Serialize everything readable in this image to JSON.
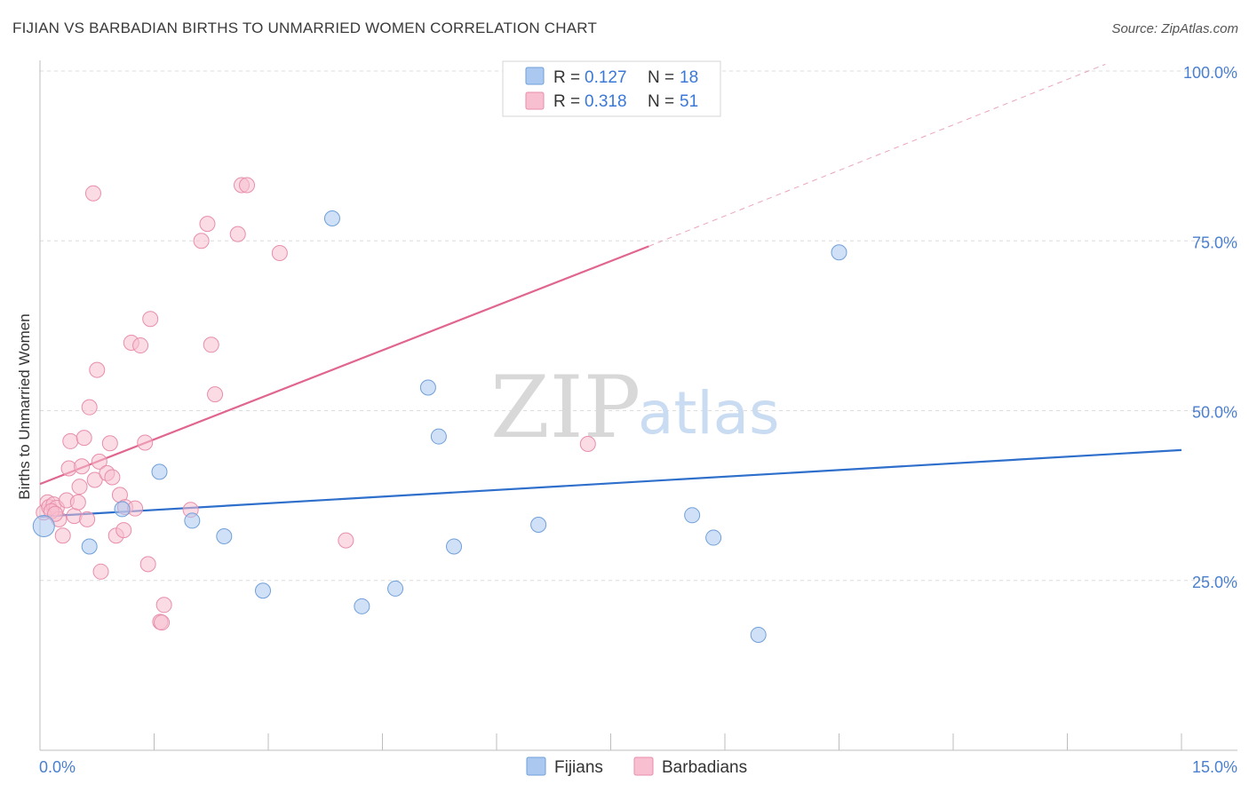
{
  "header": {
    "title": "FIJIAN VS BARBADIAN BIRTHS TO UNMARRIED WOMEN CORRELATION CHART",
    "source": "Source: ZipAtlas.com"
  },
  "watermark": {
    "zip": "ZIP",
    "atlas": "atlas"
  },
  "colors": {
    "fijians_fill": "#aac8f0",
    "fijians_stroke": "#6f9fd9",
    "fijians_line": "#2f6fcc",
    "barbadians_fill": "#f8bfd0",
    "barbadians_stroke": "#e88eab",
    "barbadians_line": "#e0658f",
    "grid": "#dcdcdc",
    "axis_label": "#4a7fd0"
  },
  "legend": {
    "items": [
      {
        "r_label": "R =",
        "r_value": "0.127",
        "n_label": "N =",
        "n_value": "18"
      },
      {
        "r_label": "R =",
        "r_value": "0.318",
        "n_label": "N =",
        "n_value": "51"
      }
    ]
  },
  "bottom_legend": {
    "fijians": "Fijians",
    "barbadians": "Barbadians"
  },
  "chart_data": {
    "type": "scatter",
    "title": "FIJIAN VS BARBADIAN BIRTHS TO UNMARRIED WOMEN CORRELATION CHART",
    "xlabel": "",
    "ylabel": "Births to Unmarried Women",
    "xlim": [
      0,
      15
    ],
    "ylim": [
      0,
      100
    ],
    "x_tick_labels": [
      "0.0%",
      "15.0%"
    ],
    "y_ticks": [
      25,
      50,
      75,
      100
    ],
    "y_tick_labels": [
      "25.0%",
      "50.0%",
      "75.0%",
      "100.0%"
    ],
    "grid": true,
    "series": [
      {
        "name": "Fijians",
        "R": 0.127,
        "N": 18,
        "points": [
          [
            0.05,
            33.0
          ],
          [
            0.65,
            30.0
          ],
          [
            1.08,
            35.5
          ],
          [
            1.57,
            41.0
          ],
          [
            2.0,
            33.8
          ],
          [
            2.42,
            31.5
          ],
          [
            2.93,
            23.5
          ],
          [
            3.84,
            78.3
          ],
          [
            4.23,
            21.2
          ],
          [
            4.67,
            23.8
          ],
          [
            5.1,
            53.4
          ],
          [
            5.24,
            46.2
          ],
          [
            5.44,
            30.0
          ],
          [
            6.55,
            33.2
          ],
          [
            8.57,
            34.6
          ],
          [
            8.85,
            31.3
          ],
          [
            9.44,
            17.0
          ],
          [
            10.5,
            73.3
          ]
        ],
        "trend": {
          "x": [
            0.0,
            15.0
          ],
          "y": [
            34.4,
            44.2
          ]
        }
      },
      {
        "name": "Barbadians",
        "R": 0.318,
        "N": 51,
        "points": [
          [
            0.05,
            35.0
          ],
          [
            0.1,
            36.5
          ],
          [
            0.12,
            35.8
          ],
          [
            0.18,
            36.2
          ],
          [
            0.22,
            35.7
          ],
          [
            0.25,
            34.0
          ],
          [
            0.3,
            31.6
          ],
          [
            0.35,
            36.8
          ],
          [
            0.38,
            41.5
          ],
          [
            0.4,
            45.5
          ],
          [
            0.45,
            34.5
          ],
          [
            0.5,
            36.5
          ],
          [
            0.52,
            38.8
          ],
          [
            0.55,
            41.8
          ],
          [
            0.58,
            46.0
          ],
          [
            0.62,
            34.0
          ],
          [
            0.65,
            50.5
          ],
          [
            0.7,
            82.0
          ],
          [
            0.72,
            39.8
          ],
          [
            0.75,
            56.0
          ],
          [
            0.78,
            42.5
          ],
          [
            0.8,
            26.3
          ],
          [
            0.88,
            40.8
          ],
          [
            0.92,
            45.2
          ],
          [
            0.95,
            40.2
          ],
          [
            1.0,
            31.6
          ],
          [
            1.05,
            37.6
          ],
          [
            1.1,
            32.4
          ],
          [
            1.12,
            35.8
          ],
          [
            1.2,
            60.0
          ],
          [
            1.25,
            35.6
          ],
          [
            1.32,
            59.6
          ],
          [
            1.38,
            45.3
          ],
          [
            1.42,
            27.4
          ],
          [
            1.45,
            63.5
          ],
          [
            1.58,
            18.9
          ],
          [
            1.6,
            18.8
          ],
          [
            1.63,
            21.4
          ],
          [
            1.98,
            35.4
          ],
          [
            2.12,
            75.0
          ],
          [
            2.2,
            77.5
          ],
          [
            2.25,
            59.7
          ],
          [
            2.3,
            52.4
          ],
          [
            2.6,
            76.0
          ],
          [
            2.65,
            83.2
          ],
          [
            2.72,
            83.2
          ],
          [
            3.15,
            73.2
          ],
          [
            4.02,
            30.9
          ],
          [
            7.2,
            45.1
          ],
          [
            0.15,
            35.2
          ],
          [
            0.2,
            34.8
          ]
        ],
        "trend": {
          "x": [
            0.0,
            8.0
          ],
          "y": [
            39.2,
            74.2
          ]
        },
        "trend_extension": {
          "x": [
            8.0,
            14.0
          ],
          "y": [
            74.2,
            101.0
          ]
        }
      }
    ]
  }
}
